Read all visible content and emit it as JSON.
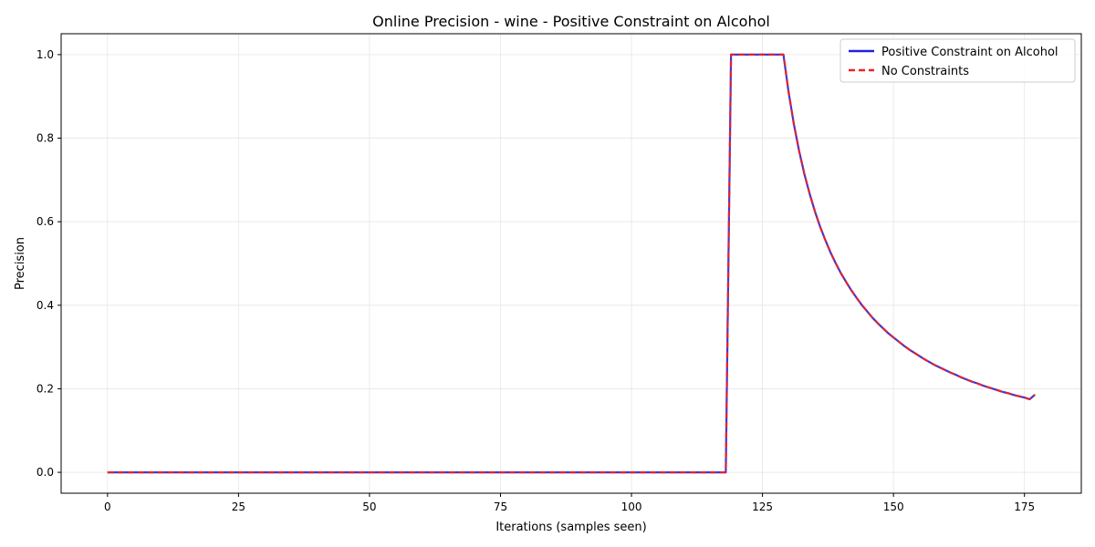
{
  "chart_data": {
    "type": "line",
    "title": "Online Precision - wine - Positive Constraint on Alcohol",
    "xlabel": "Iterations (samples seen)",
    "ylabel": "Precision",
    "xlim": [
      -8.85,
      185.85
    ],
    "ylim": [
      -0.05,
      1.05
    ],
    "xticks": [
      0,
      25,
      50,
      75,
      100,
      125,
      150,
      175
    ],
    "yticks": [
      0.0,
      0.2,
      0.4,
      0.6,
      0.8,
      1.0
    ],
    "xtick_labels": [
      "0",
      "25",
      "50",
      "75",
      "100",
      "125",
      "150",
      "175"
    ],
    "ytick_labels": [
      "0.0",
      "0.2",
      "0.4",
      "0.6",
      "0.8",
      "1.0"
    ],
    "grid": true,
    "legend_position": "top-right",
    "x": [
      0,
      10,
      20,
      30,
      40,
      50,
      60,
      70,
      80,
      90,
      100,
      110,
      118,
      119,
      120,
      121,
      122,
      123,
      124,
      125,
      126,
      127,
      128,
      129,
      130,
      131,
      132,
      133,
      134,
      135,
      136,
      137,
      138,
      139,
      140,
      141,
      142,
      143,
      144,
      145,
      146,
      147,
      148,
      149,
      150,
      151,
      152,
      153,
      154,
      155,
      156,
      157,
      158,
      159,
      160,
      161,
      162,
      163,
      164,
      165,
      166,
      167,
      168,
      169,
      170,
      171,
      172,
      173,
      174,
      175,
      176,
      177
    ],
    "series": [
      {
        "name": "Positive Constraint on Alcohol",
        "color": "#2222dd",
        "style": "solid",
        "values": [
          0,
          0,
          0,
          0,
          0,
          0,
          0,
          0,
          0,
          0,
          0,
          0,
          0,
          1.0,
          1.0,
          1.0,
          1.0,
          1.0,
          1.0,
          1.0,
          1.0,
          1.0,
          1.0,
          1.0,
          0.909,
          0.833,
          0.769,
          0.714,
          0.667,
          0.625,
          0.588,
          0.556,
          0.526,
          0.5,
          0.476,
          0.455,
          0.435,
          0.417,
          0.4,
          0.385,
          0.37,
          0.357,
          0.345,
          0.333,
          0.323,
          0.313,
          0.303,
          0.294,
          0.286,
          0.278,
          0.27,
          0.263,
          0.256,
          0.25,
          0.244,
          0.238,
          0.233,
          0.227,
          0.222,
          0.217,
          0.213,
          0.208,
          0.204,
          0.2,
          0.196,
          0.192,
          0.189,
          0.185,
          0.182,
          0.179,
          0.175,
          0.186
        ]
      },
      {
        "name": "No Constraints",
        "color": "#ee2222",
        "style": "dashed",
        "values": [
          0,
          0,
          0,
          0,
          0,
          0,
          0,
          0,
          0,
          0,
          0,
          0,
          0,
          1.0,
          1.0,
          1.0,
          1.0,
          1.0,
          1.0,
          1.0,
          1.0,
          1.0,
          1.0,
          1.0,
          0.909,
          0.833,
          0.769,
          0.714,
          0.667,
          0.625,
          0.588,
          0.556,
          0.526,
          0.5,
          0.476,
          0.455,
          0.435,
          0.417,
          0.4,
          0.385,
          0.37,
          0.357,
          0.345,
          0.333,
          0.323,
          0.313,
          0.303,
          0.294,
          0.286,
          0.278,
          0.27,
          0.263,
          0.256,
          0.25,
          0.244,
          0.238,
          0.233,
          0.227,
          0.222,
          0.217,
          0.213,
          0.208,
          0.204,
          0.2,
          0.196,
          0.192,
          0.189,
          0.185,
          0.182,
          0.179,
          0.175,
          0.186
        ]
      }
    ]
  }
}
